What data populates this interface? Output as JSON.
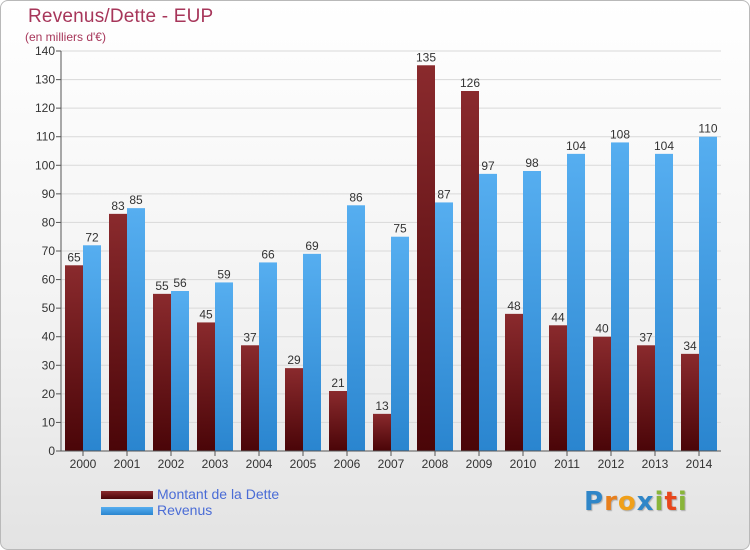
{
  "header": {
    "title": "Revenus/Dette - EUP",
    "subtitle": "(en milliers d'€)"
  },
  "legend": [
    {
      "label": "Montant de la Dette",
      "color": "#6b0f12"
    },
    {
      "label": "Revenus",
      "color": "#3d9be3"
    }
  ],
  "logo": [
    "P",
    "r",
    "o",
    "x",
    "i",
    "t",
    "i"
  ],
  "colors": {
    "dette": "#6b0f12",
    "revenus": "#3d9be3",
    "axis_text": "#333333",
    "grid": "#d9d9d9"
  },
  "chart_data": {
    "type": "bar",
    "title": "Revenus/Dette - EUP",
    "subtitle": "(en milliers d'€)",
    "categories": [
      "2000",
      "2001",
      "2002",
      "2003",
      "2004",
      "2005",
      "2006",
      "2007",
      "2008",
      "2009",
      "2010",
      "2011",
      "2012",
      "2013",
      "2014"
    ],
    "series": [
      {
        "name": "Montant de la Dette",
        "color": "#6b0f12",
        "values": [
          65,
          83,
          55,
          45,
          37,
          29,
          21,
          13,
          135,
          126,
          48,
          44,
          40,
          37,
          34
        ]
      },
      {
        "name": "Revenus",
        "color": "#3d9be3",
        "values": [
          72,
          85,
          56,
          59,
          66,
          69,
          86,
          75,
          87,
          97,
          98,
          104,
          108,
          104,
          110
        ]
      }
    ],
    "ylim": [
      0,
      140
    ],
    "yticks": [
      0,
      10,
      20,
      30,
      40,
      50,
      60,
      70,
      80,
      90,
      100,
      110,
      120,
      130,
      140
    ],
    "grid": true,
    "legend_position": "bottom-left"
  }
}
